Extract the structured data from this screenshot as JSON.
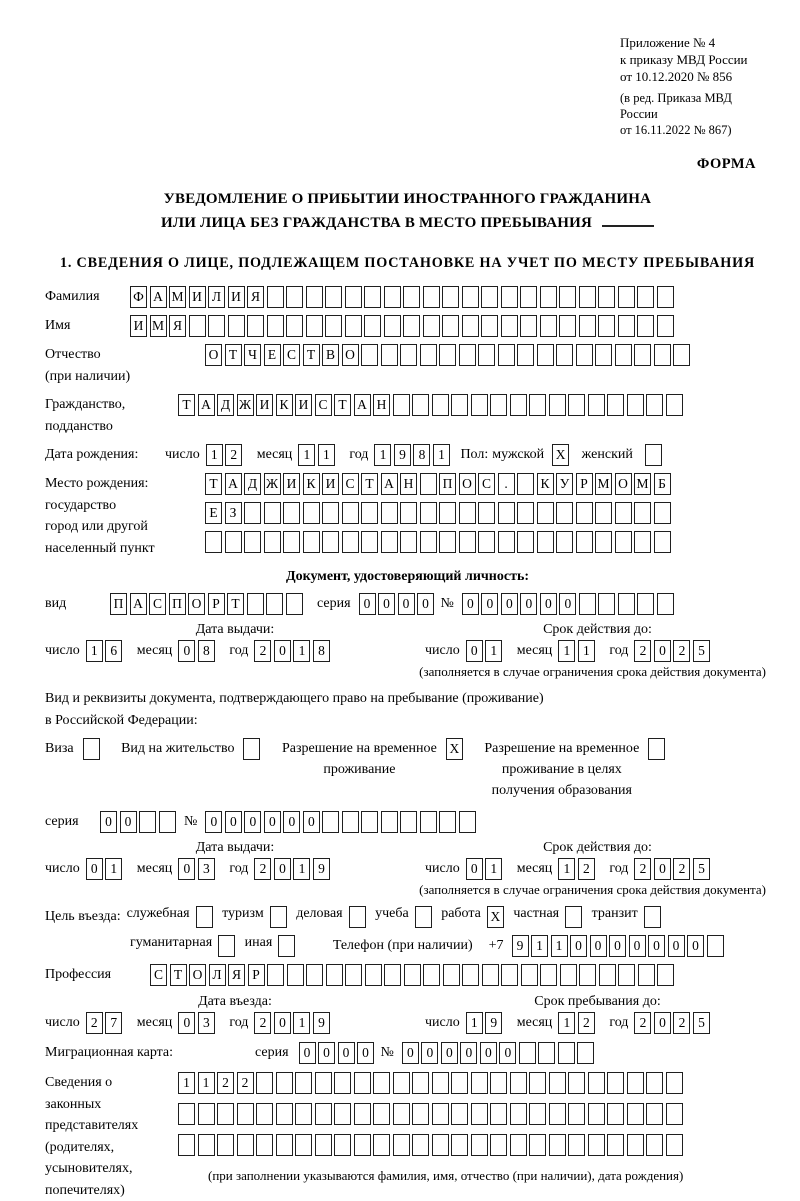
{
  "header": {
    "annex_lines": [
      "Приложение № 4",
      "к приказу МВД России",
      "от 10.12.2020 № 856"
    ],
    "edition_lines": [
      "(в ред. Приказа МВД России",
      "от 16.11.2022 № 867)"
    ],
    "form_label": "ФОРМА"
  },
  "title": {
    "line1": "УВЕДОМЛЕНИЕ О ПРИБЫТИИ ИНОСТРАННОГО ГРАЖДАНИНА",
    "line2": "ИЛИ ЛИЦА БЕЗ ГРАЖДАНСТВА В МЕСТО ПРЕБЫВАНИЯ"
  },
  "section1": {
    "heading": "1. СВЕДЕНИЯ О ЛИЦЕ, ПОДЛЕЖАЩЕМ ПОСТАНОВКЕ НА УЧЕТ ПО МЕСТУ ПРЕБЫВАНИЯ"
  },
  "date_labels": {
    "d": "число",
    "m": "месяц",
    "y": "год"
  },
  "person": {
    "surname": {
      "label": "Фамилия",
      "cells": {
        "n": 28,
        "v": "ФАМИЛИЯ"
      }
    },
    "name": {
      "label": "Имя",
      "cells": {
        "n": 28,
        "v": "ИМЯ"
      }
    },
    "patronymic": {
      "label1": "Отчество",
      "label2": "(при наличии)",
      "cells": {
        "n": 25,
        "v": "ОТЧЕСТВО"
      }
    },
    "citizenship": {
      "label1": "Гражданство,",
      "label2": "подданство",
      "cells": {
        "n": 26,
        "v": "ТАДЖИКИСТАН"
      }
    },
    "birth_date": {
      "label": "Дата рождения:",
      "date": {
        "d": "12",
        "m": "11",
        "y": "1981"
      }
    },
    "sex": {
      "label": "Пол:",
      "male_label": "мужской",
      "male": {
        "n": 1,
        "v": "X"
      },
      "female_label": "женский",
      "female": {
        "n": 1,
        "v": ""
      }
    },
    "birth_place": {
      "labels": [
        "Место рождения:",
        "государство",
        "город или другой",
        "населенный пункт"
      ],
      "row1": {
        "n": 24,
        "v": "ТАДЖИКИСТАН ПОС. КУРМОМБ"
      },
      "row2": {
        "n": 24,
        "v": "ЕЗ"
      },
      "row3": {
        "n": 24,
        "v": ""
      }
    }
  },
  "identity_doc": {
    "heading": "Документ, удостоверяющий личность:",
    "type_label": "вид",
    "type": {
      "n": 10,
      "v": "ПАСПОРТ"
    },
    "series_label": "серия",
    "series": {
      "n": 4,
      "v": "0000"
    },
    "number_label": "№",
    "number": {
      "n": 11,
      "v": "000000"
    },
    "issue_label": "Дата выдачи:",
    "issue": {
      "d": "16",
      "m": "08",
      "y": "2018"
    },
    "expiry_label": "Срок действия до:",
    "expiry": {
      "d": "01",
      "m": "11",
      "y": "2025"
    },
    "note": "(заполняется в случае ограничения срока действия документа)"
  },
  "residence_doc": {
    "intro1": "Вид и реквизиты документа, подтверждающего право на пребывание (проживание)",
    "intro2": "в Российской Федерации:",
    "options": [
      {
        "name": "visa",
        "label": "Виза",
        "v": ""
      },
      {
        "name": "vid-na-zhitelstvo",
        "label": "Вид на жительство",
        "v": ""
      },
      {
        "name": "razreshenie-vremennoe-prozhivanie",
        "lines": [
          "Разрешение на временное",
          "проживание"
        ],
        "v": "X"
      },
      {
        "name": "razreshenie-obrazovanie",
        "lines": [
          "Разрешение на временное",
          "проживание в целях",
          "получения образования"
        ],
        "v": ""
      }
    ],
    "series_label": "серия",
    "series": {
      "n": 4,
      "v": "00"
    },
    "number_label": "№",
    "number": {
      "n": 14,
      "v": "000000"
    },
    "issue_label": "Дата выдачи:",
    "issue": {
      "d": "01",
      "m": "03",
      "y": "2019"
    },
    "expiry_label": "Срок действия до:",
    "expiry": {
      "d": "01",
      "m": "12",
      "y": "2025"
    },
    "note": "(заполняется в случае ограничения срока действия документа)"
  },
  "visit_purpose": {
    "label": "Цель въезда:",
    "row1": [
      {
        "name": "sluzhebnaya",
        "label": "служебная",
        "v": ""
      },
      {
        "name": "turizm",
        "label": "туризм",
        "v": ""
      },
      {
        "name": "delovaya",
        "label": "деловая",
        "v": ""
      },
      {
        "name": "ucheba",
        "label": "учеба",
        "v": ""
      },
      {
        "name": "rabota",
        "label": "работа",
        "v": "X"
      },
      {
        "name": "chastnaya",
        "label": "частная",
        "v": ""
      },
      {
        "name": "tranzit",
        "label": "транзит",
        "v": ""
      }
    ],
    "row2": [
      {
        "name": "gumanitarnaya",
        "label": "гуманитарная",
        "v": ""
      },
      {
        "name": "inaya",
        "label": "иная",
        "v": ""
      }
    ],
    "phone_label": "Телефон (при наличии)",
    "phone_prefix": "+7",
    "phone": {
      "n": 11,
      "v": "9110000000"
    }
  },
  "profession": {
    "label": "Профессия",
    "cells": {
      "n": 27,
      "v": "СТОЛЯР"
    }
  },
  "entry": {
    "entry_label": "Дата въезда:",
    "entry_date": {
      "d": "27",
      "m": "03",
      "y": "2019"
    },
    "stay_label": "Срок пребывания до:",
    "stay_date": {
      "d": "19",
      "m": "12",
      "y": "2025"
    }
  },
  "migration_card": {
    "label": "Миграционная карта:",
    "series_label": "серия",
    "series": {
      "n": 4,
      "v": "0000"
    },
    "number_label": "№",
    "number": {
      "n": 10,
      "v": "000000"
    }
  },
  "representatives": {
    "labels": [
      "Сведения о",
      "законных",
      "представителях",
      "(родителях,",
      "усыновителях,",
      "попечителях)"
    ],
    "row1": {
      "n": 26,
      "v": "1122"
    },
    "row2": {
      "n": 26,
      "v": ""
    },
    "row3": {
      "n": 26,
      "v": ""
    },
    "caption": "(при заполнении указываются фамилия, имя, отчество (при наличии), дата рождения)"
  }
}
